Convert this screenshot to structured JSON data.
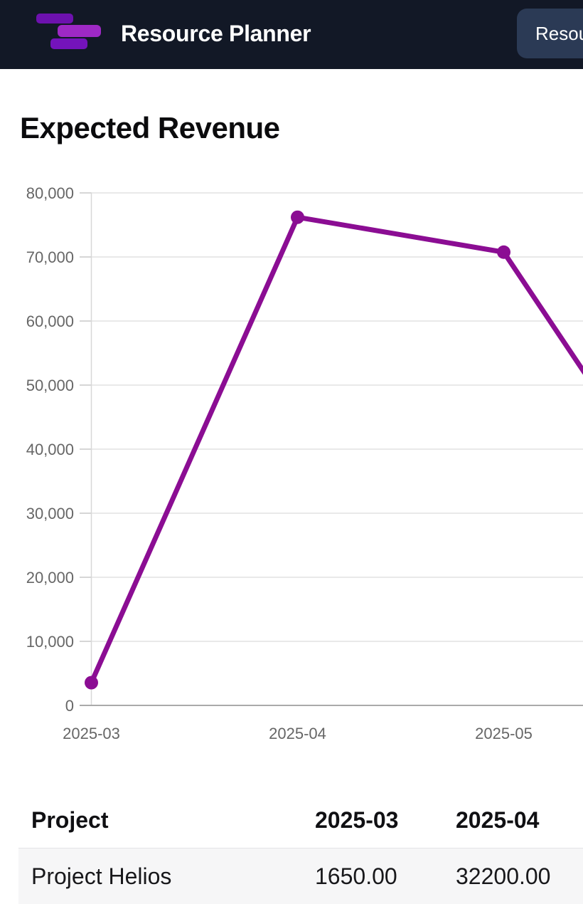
{
  "header": {
    "app_title": "Resource Planner",
    "nav_button_label": "Resources",
    "logo_icon": "gantt-bars-icon",
    "colors": {
      "bar_bg": "#121826",
      "button_bg": "#2b3a55",
      "logo_bar_top": "#6d11ae",
      "logo_bar_middle": "#9e29c5",
      "logo_bar_bottom": "#7413bb"
    }
  },
  "page": {
    "heading": "Expected Revenue"
  },
  "chart_data": {
    "type": "line",
    "title": "Expected Revenue",
    "categories": [
      "2025-03",
      "2025-04",
      "2025-05"
    ],
    "values": [
      3550,
      76200,
      70750
    ],
    "right_edge_value": 51950,
    "xlabel": "",
    "ylabel": "",
    "ylim": [
      0,
      80000
    ],
    "y_ticks": [
      "0",
      "10,000",
      "20,000",
      "30,000",
      "40,000",
      "50,000",
      "60,000",
      "70,000",
      "80,000"
    ],
    "grid": true,
    "legend": false,
    "line_color": "#8b0d93",
    "grid_color": "#e2e2e2",
    "axis_color": "#aaaaaa",
    "tick_color": "#c8c8c8",
    "yaxis_line_color": "#d8d8d8",
    "label_color": "#666666"
  },
  "table": {
    "columns": [
      "Project",
      "2025-03",
      "2025-04"
    ],
    "rows": [
      {
        "project": "Project Helios",
        "values": [
          "1650.00",
          "32200.00"
        ]
      }
    ]
  }
}
